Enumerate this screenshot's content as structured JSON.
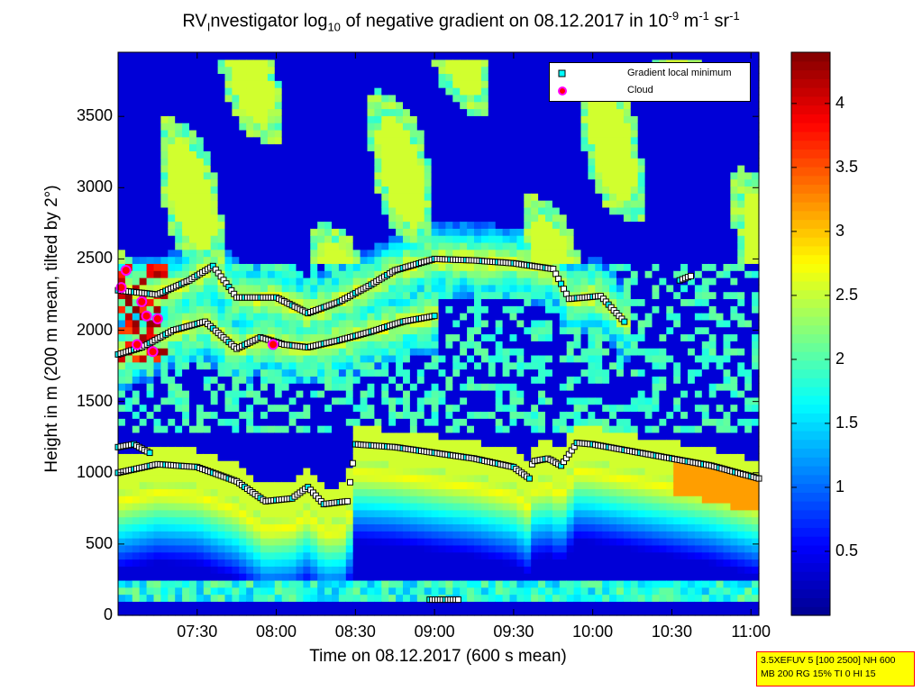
{
  "title": {
    "prefix": "RV",
    "sub1": "I",
    "mid": "nvestigator log",
    "sub2": "10",
    "after": " of negative gradient on 08.12.2017 in 10",
    "sup1": "-9",
    "unit1": " m",
    "sup2": "-1",
    "unit2": " sr",
    "sup3": "-1"
  },
  "info_box": [
    "3.5XEFUV 5 [100 2500] NH 600",
    "MB 200 RG 15% TI 0 HI 15"
  ],
  "colors": {
    "background_low": "#00008f",
    "colormap": [
      "#00008f",
      "#0000ff",
      "#0080ff",
      "#00ffff",
      "#80ff80",
      "#ffff00",
      "#ff8000",
      "#ff0000",
      "#800000"
    ],
    "minimum_marker_fill": "#ffffff",
    "minimum_marker_fill_alt": "#00ffff",
    "cloud_marker": "#ff0000",
    "cloud_edge": "#ff00ff",
    "info_box_bg": "#ffff00",
    "info_box_border": "#ff0000"
  },
  "chart_data": {
    "type": "heatmap",
    "xlabel": "Time on 08.12.2017 (600 s mean)",
    "ylabel": "Height in m (200 m mean, tilted by 2°)",
    "x_range_hours": [
      7.0,
      11.05
    ],
    "y_range": [
      0,
      3950
    ],
    "x_ticks": [
      {
        "t": 7.5,
        "label": "07:30"
      },
      {
        "t": 8.0,
        "label": "08:00"
      },
      {
        "t": 8.5,
        "label": "08:30"
      },
      {
        "t": 9.0,
        "label": "09:00"
      },
      {
        "t": 9.5,
        "label": "09:30"
      },
      {
        "t": 10.0,
        "label": "10:00"
      },
      {
        "t": 10.5,
        "label": "10:30"
      },
      {
        "t": 11.0,
        "label": "11:00"
      }
    ],
    "y_ticks": [
      0,
      500,
      1000,
      1500,
      2000,
      2500,
      3000,
      3500
    ],
    "colorbar": {
      "range": [
        0,
        4.4
      ],
      "ticks": [
        "0.5",
        "1",
        "1.5",
        "2",
        "2.5",
        "3",
        "3.5",
        "4"
      ]
    },
    "legend": [
      {
        "label": "Gradient local minimum",
        "marker": "square",
        "color": "#00ffff"
      },
      {
        "label": "Cloud",
        "marker": "circle",
        "color": "#ff0000"
      }
    ],
    "legend_position": "top-right",
    "layers": [
      {
        "name": "boundary_layer_top",
        "points": [
          [
            7.0,
            1000
          ],
          [
            7.25,
            1060
          ],
          [
            7.5,
            1040
          ],
          [
            7.75,
            940
          ],
          [
            7.93,
            800
          ],
          [
            8.1,
            820
          ],
          [
            8.2,
            900
          ],
          [
            8.3,
            780
          ],
          [
            8.45,
            800
          ],
          [
            8.5,
            1200
          ],
          [
            8.75,
            1180
          ],
          [
            9.0,
            1140
          ],
          [
            9.25,
            1100
          ],
          [
            9.5,
            1040
          ],
          [
            9.6,
            960
          ],
          [
            9.62,
            1080
          ],
          [
            9.72,
            1100
          ],
          [
            9.8,
            1050
          ],
          [
            9.85,
            1130
          ],
          [
            9.9,
            1210
          ],
          [
            10.0,
            1200
          ],
          [
            10.25,
            1150
          ],
          [
            10.5,
            1100
          ],
          [
            10.75,
            1050
          ],
          [
            11.05,
            960
          ]
        ]
      },
      {
        "name": "lower_residual",
        "points": [
          [
            7.0,
            1180
          ],
          [
            7.1,
            1200
          ],
          [
            7.2,
            1140
          ]
        ]
      },
      {
        "name": "residual_layer_1",
        "points": [
          [
            7.0,
            1830
          ],
          [
            7.15,
            1880
          ],
          [
            7.35,
            2000
          ],
          [
            7.55,
            2060
          ],
          [
            7.75,
            1870
          ],
          [
            7.9,
            1950
          ],
          [
            8.05,
            1900
          ],
          [
            8.2,
            1880
          ],
          [
            8.4,
            1930
          ],
          [
            8.6,
            1990
          ],
          [
            8.8,
            2060
          ],
          [
            9.0,
            2100
          ]
        ]
      },
      {
        "name": "residual_layer_2",
        "points": [
          [
            7.0,
            2280
          ],
          [
            7.25,
            2250
          ],
          [
            7.45,
            2350
          ],
          [
            7.6,
            2450
          ],
          [
            7.75,
            2230
          ],
          [
            8.0,
            2230
          ],
          [
            8.2,
            2120
          ],
          [
            8.4,
            2200
          ],
          [
            8.6,
            2320
          ],
          [
            8.75,
            2420
          ],
          [
            9.0,
            2500
          ],
          [
            9.25,
            2490
          ],
          [
            9.5,
            2470
          ],
          [
            9.75,
            2430
          ],
          [
            9.85,
            2220
          ],
          [
            10.05,
            2240
          ],
          [
            10.2,
            2060
          ]
        ]
      },
      {
        "name": "upper_layer",
        "points": [
          [
            10.55,
            2350
          ],
          [
            10.62,
            2380
          ]
        ]
      },
      {
        "name": "surface_layer",
        "points": [
          [
            8.97,
            110
          ],
          [
            9.15,
            110
          ]
        ]
      }
    ],
    "clouds": [
      {
        "t": 7.02,
        "h": 2300
      },
      {
        "t": 7.15,
        "h": 2200
      },
      {
        "t": 7.18,
        "h": 2100
      },
      {
        "t": 7.25,
        "h": 2080
      },
      {
        "t": 7.12,
        "h": 1900
      },
      {
        "t": 7.22,
        "h": 1850
      },
      {
        "t": 7.98,
        "h": 1900
      },
      {
        "t": 7.05,
        "h": 2420
      }
    ]
  }
}
